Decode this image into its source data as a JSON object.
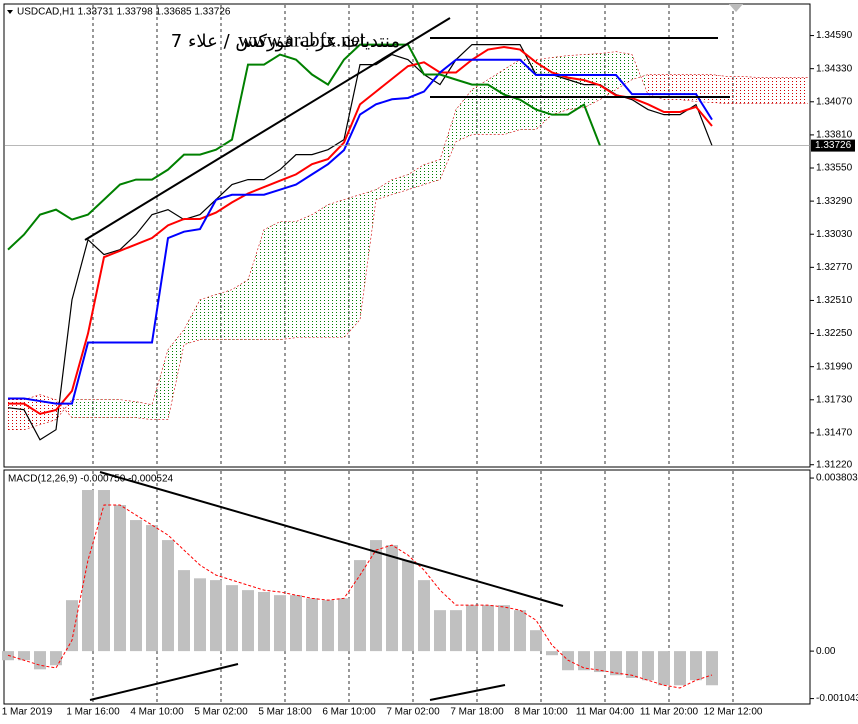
{
  "chart_data": [
    {
      "type": "line",
      "title": "USDCAD,H1  1.33731 1.33798 1.33685 1.33726",
      "watermark": "www.arabfx.net",
      "watermark_ar": "منتديات عرب فوركس / علاء 7",
      "last_label": "1.33726",
      "x_labels": [
        "1 Mar 2019",
        "1 Mar 16:00",
        "4 Mar 10:00",
        "5 Mar 02:00",
        "5 Mar 18:00",
        "6 Mar 10:00",
        "7 Mar 02:00",
        "7 Mar 18:00",
        "8 Mar 10:00",
        "11 Mar 04:00",
        "11 Mar 20:00",
        "12 Mar 12:00"
      ],
      "ylim": [
        1.3121,
        1.3483
      ],
      "yticks": [
        {
          "value": 1.3459,
          "label": "1.34590"
        },
        {
          "value": 1.3433,
          "label": "1.34330"
        },
        {
          "value": 1.3407,
          "label": "1.34070"
        },
        {
          "value": 1.3381,
          "label": "1.33810"
        },
        {
          "value": 1.3355,
          "label": "1.33550"
        },
        {
          "value": 1.3329,
          "label": "1.33290"
        },
        {
          "value": 1.3303,
          "label": "1.33030"
        },
        {
          "value": 1.3277,
          "label": "1.32770"
        },
        {
          "value": 1.3251,
          "label": "1.32510"
        },
        {
          "value": 1.3225,
          "label": "1.32250"
        },
        {
          "value": 1.3199,
          "label": "1.31990"
        },
        {
          "value": 1.3173,
          "label": "1.31730"
        },
        {
          "value": 1.3147,
          "label": "1.31470"
        },
        {
          "value": 1.3122,
          "label": "1.31220"
        }
      ],
      "series": [
        {
          "color": "#000000",
          "values": [
            1.31668,
            1.31652,
            1.31416,
            1.31495,
            1.32516,
            1.32987,
            1.3287,
            1.32909,
            1.33027,
            1.33184,
            1.33223,
            1.33145,
            1.33184,
            1.33302,
            1.3342,
            1.33459,
            1.33459,
            1.33537,
            1.33655,
            1.33655,
            1.33694,
            1.33773,
            1.34362,
            1.34362,
            1.34441,
            1.34401,
            1.34284,
            1.34205,
            1.34401,
            1.34519,
            1.34519,
            1.34519,
            1.34519,
            1.34284,
            1.34284,
            1.34244,
            1.34205,
            1.34205,
            1.34127,
            1.34087,
            1.34009,
            1.33969,
            1.33969,
            1.34048,
            1.33726
          ]
        },
        {
          "color": "#ff0000",
          "values": [
            1.317,
            1.317,
            1.3162,
            1.3165,
            1.318,
            1.3225,
            1.3285,
            1.329,
            1.3295,
            1.33,
            1.331,
            1.3315,
            1.3315,
            1.332,
            1.3328,
            1.3335,
            1.334,
            1.3345,
            1.335,
            1.3358,
            1.3362,
            1.3375,
            1.3405,
            1.3415,
            1.3425,
            1.3435,
            1.3438,
            1.343,
            1.343,
            1.344,
            1.3448,
            1.345,
            1.3448,
            1.3438,
            1.343,
            1.3426,
            1.3424,
            1.342,
            1.3412,
            1.341,
            1.3405,
            1.3399,
            1.3399,
            1.3403,
            1.3388
          ]
        },
        {
          "color": "#0000ff",
          "values": [
            1.3174,
            1.3174,
            1.3172,
            1.317,
            1.317,
            1.3218,
            1.3218,
            1.3218,
            1.3218,
            1.3218,
            1.33,
            1.3305,
            1.3307,
            1.333,
            1.3334,
            1.3334,
            1.3334,
            1.3338,
            1.3342,
            1.335,
            1.3358,
            1.3369,
            1.3397,
            1.3405,
            1.3409,
            1.341,
            1.3415,
            1.343,
            1.344,
            1.344,
            1.344,
            1.344,
            1.344,
            1.3428,
            1.3428,
            1.3428,
            1.3428,
            1.3428,
            1.3428,
            1.3413,
            1.3413,
            1.3413,
            1.3413,
            1.3413,
            1.3393
          ]
        },
        {
          "color": "#008000",
          "values": [
            1.32909,
            1.33027,
            1.33184,
            1.33223,
            1.33145,
            1.33184,
            1.33302,
            1.3342,
            1.33459,
            1.33459,
            1.33537,
            1.33655,
            1.33655,
            1.33694,
            1.33773,
            1.34362,
            1.34362,
            1.34441,
            1.34401,
            1.34284,
            1.34205,
            1.34401,
            1.34519,
            1.34519,
            1.34519,
            1.34519,
            1.34284,
            1.34284,
            1.34244,
            1.34205,
            1.34205,
            1.34127,
            1.34087,
            1.34009,
            1.33969,
            1.33969,
            1.34048,
            1.33726,
            null,
            null,
            null,
            null,
            null,
            null,
            null
          ]
        }
      ],
      "cloud": {
        "up_color": "#008000",
        "down_color": "#d00000",
        "span_a": [
          1.31495,
          1.31495,
          1.31534,
          1.31574,
          1.31731,
          1.31731,
          1.31731,
          1.31731,
          1.31715,
          1.31691,
          1.32124,
          1.32281,
          1.32516,
          1.32556,
          1.32595,
          1.32673,
          1.33066,
          1.33129,
          1.33129,
          1.33184,
          1.33262,
          1.33302,
          1.33341,
          1.3338,
          1.33459,
          1.33498,
          1.33577,
          1.33616,
          1.34009,
          1.34166,
          1.34244,
          1.34323,
          1.34401,
          1.34401,
          1.34417,
          1.34433,
          1.34441,
          1.34449,
          1.34464,
          1.34441,
          1.34127,
          1.34087,
          1.34087,
          1.34072,
          1.34064,
          1.34056,
          1.34056,
          1.34056,
          1.34056,
          1.34056,
          1.34056
        ],
        "span_b": [
          1.31731,
          1.31731,
          1.3177,
          1.31731,
          1.31589,
          1.31589,
          1.31589,
          1.31589,
          1.31589,
          1.31574,
          1.31574,
          1.32163,
          1.32202,
          1.32202,
          1.32202,
          1.32202,
          1.32202,
          1.32202,
          1.32218,
          1.32218,
          1.32218,
          1.32218,
          1.32359,
          1.33302,
          1.33341,
          1.3338,
          1.3342,
          1.33459,
          1.33757,
          1.33812,
          1.33812,
          1.33812,
          1.33852,
          1.33852,
          1.33969,
          1.34009,
          1.34024,
          1.34087,
          1.34166,
          1.34244,
          1.34284,
          1.34284,
          1.34284,
          1.34284,
          1.34284,
          1.34268,
          1.34268,
          1.3426,
          1.3426,
          1.3426,
          1.3426
        ]
      }
    },
    {
      "type": "bar",
      "title": "MACD(12,26,9) -0.000750 -0.000524",
      "ylim": [
        -0.00114,
        0.00398
      ],
      "yticks": [
        0.003803,
        {
          "value": 0,
          "label": "0.00"
        },
        -0.001043
      ],
      "color": "#c0c0c0",
      "values": [
        -0.0002,
        -0.0002,
        -0.0004,
        -0.00031,
        0.00112,
        0.00354,
        0.00354,
        0.00321,
        0.00288,
        0.00277,
        0.00244,
        0.00178,
        0.0016,
        0.00156,
        0.00145,
        0.00134,
        0.0013,
        0.00123,
        0.00123,
        0.00116,
        0.00112,
        0.00116,
        0.002,
        0.00244,
        0.00233,
        0.002,
        0.00156,
        0.0009,
        0.0009,
        0.00101,
        0.00101,
        0.00101,
        0.0009,
        0.00046,
        -9e-05,
        -0.00042,
        -0.00042,
        -0.00046,
        -0.00053,
        -0.00059,
        -0.00064,
        -0.00075,
        -0.00075,
        -0.00064,
        -0.00075
      ],
      "signal": {
        "color": "#ff0000",
        "values": [
          -9e-05,
          -0.0002,
          -0.00031,
          -0.00037,
          0.00024,
          0.002,
          0.00321,
          0.00321,
          0.00299,
          0.00277,
          0.00255,
          0.00222,
          0.00189,
          0.00167,
          0.00156,
          0.00145,
          0.00134,
          0.0013,
          0.00123,
          0.00116,
          0.00112,
          0.00116,
          0.00167,
          0.00222,
          0.00233,
          0.00211,
          0.00178,
          0.00134,
          0.00101,
          0.00101,
          0.00101,
          0.00097,
          0.0009,
          0.00068,
          0.00013,
          -0.0002,
          -0.00037,
          -0.00042,
          -0.00048,
          -0.00053,
          -0.00064,
          -0.00075,
          -0.00081,
          -0.00064,
          -0.000524
        ]
      }
    }
  ]
}
